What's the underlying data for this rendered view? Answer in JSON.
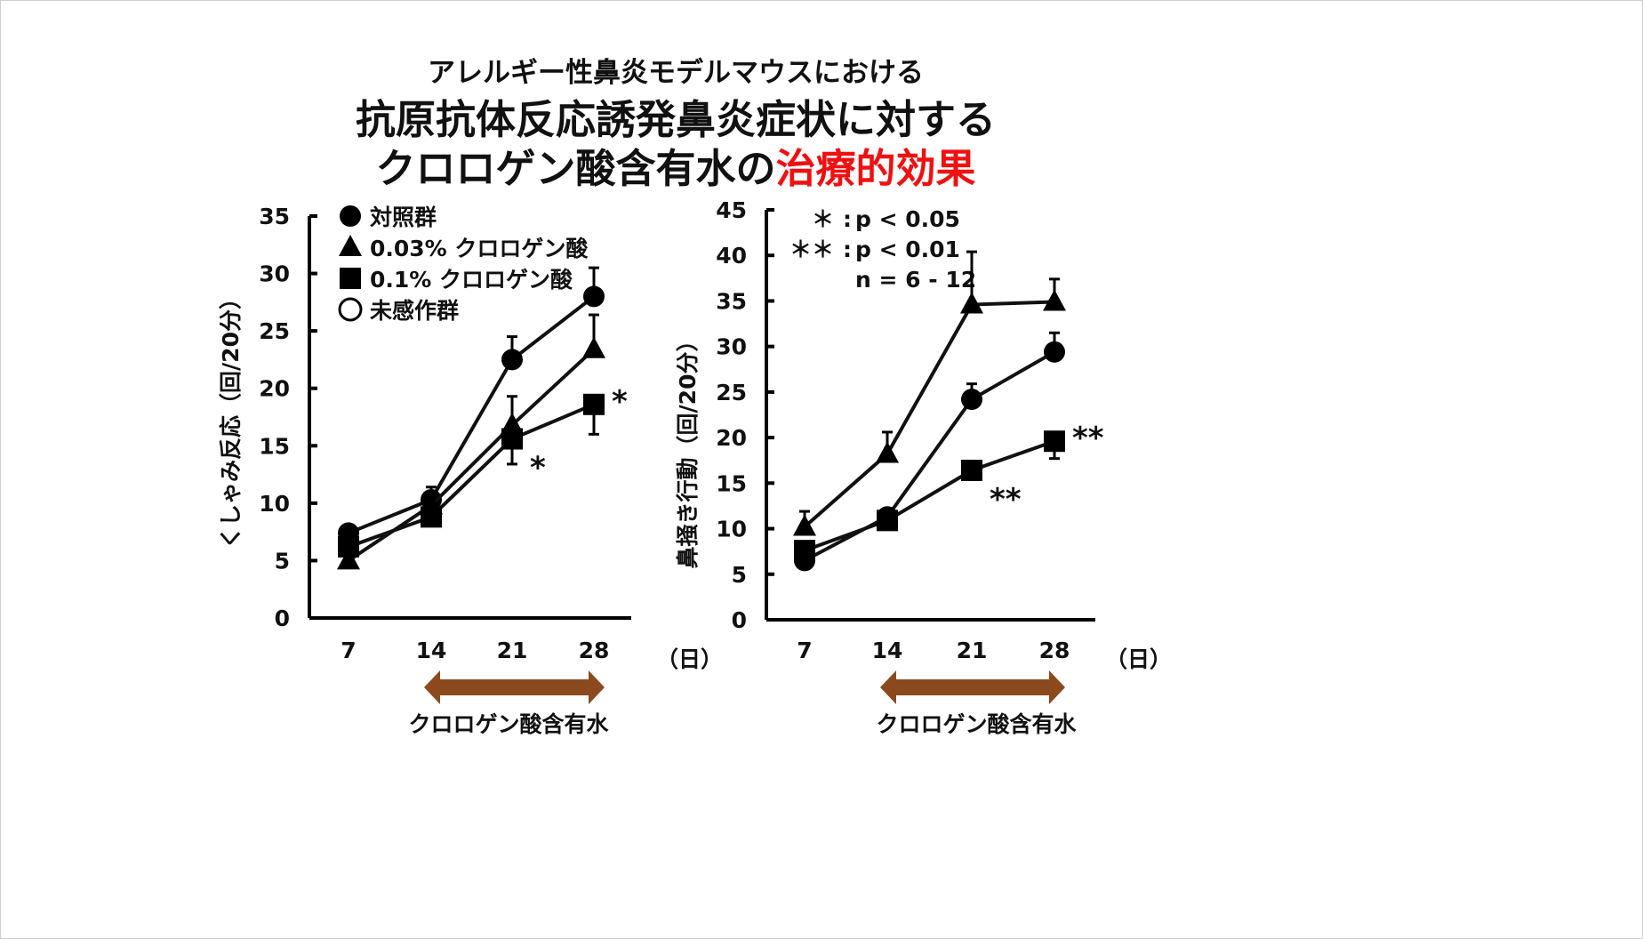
{
  "title": {
    "line1": "アレルギー性鼻炎モデルマウスにおける",
    "line2": "抗原抗体反応誘発鼻炎症状に対する",
    "line3_black": "クロロゲン酸含有水の",
    "line3_red": "治療的効果",
    "red_color": "#ee1111"
  },
  "legend": [
    {
      "marker": "filled-circle",
      "label": "対照群"
    },
    {
      "marker": "filled-triangle",
      "label": "0.03% クロロゲン酸"
    },
    {
      "marker": "filled-square",
      "label": "0.1% クロロゲン酸"
    },
    {
      "marker": "open-circle",
      "label": "未感作群"
    }
  ],
  "stats_note": [
    {
      "mark": "＊",
      "text": "p < 0.05"
    },
    {
      "mark": "＊＊",
      "text": "p < 0.01"
    },
    {
      "mark": "",
      "text": "n = 6 - 12"
    }
  ],
  "arrow_color": "#8b4a1e",
  "chart_data": [
    {
      "type": "line",
      "ylabel": "くしゃみ反応（回/20分）",
      "xlabel_unit": "（日）",
      "treatment_label": "クロロゲン酸含有水",
      "treatment_range": [
        14,
        28
      ],
      "x": [
        7,
        14,
        21,
        28
      ],
      "ylim": [
        0,
        35
      ],
      "yticks": [
        0,
        5,
        10,
        15,
        20,
        25,
        30,
        35
      ],
      "series": [
        {
          "name": "対照群",
          "marker": "circle",
          "values": [
            7.4,
            10.3,
            22.5,
            28.0
          ],
          "err": [
            0.4,
            1.1,
            2.0,
            2.5
          ],
          "err_dir": "up"
        },
        {
          "name": "0.03% クロロゲン酸",
          "marker": "triangle",
          "values": [
            5.0,
            9.8,
            16.8,
            23.4
          ],
          "err": [
            0,
            0.6,
            2.5,
            3.0
          ],
          "err_dir": "up"
        },
        {
          "name": "0.1% クロロゲン酸",
          "marker": "square",
          "values": [
            6.2,
            8.8,
            15.6,
            18.6
          ],
          "err": [
            0,
            0.6,
            2.2,
            2.6
          ],
          "err_dir": "down"
        }
      ],
      "significance": [
        {
          "series": "0.1% クロロゲン酸",
          "x": 21,
          "mark": "*"
        },
        {
          "series": "0.1% クロロゲン酸",
          "x": 28,
          "mark": "*"
        }
      ]
    },
    {
      "type": "line",
      "ylabel": "鼻掻き行動（回/20分）",
      "xlabel_unit": "（日）",
      "treatment_label": "クロロゲン酸含有水",
      "treatment_range": [
        14,
        28
      ],
      "x": [
        7,
        14,
        21,
        28
      ],
      "ylim": [
        0,
        45
      ],
      "yticks": [
        0,
        5,
        10,
        15,
        20,
        25,
        30,
        35,
        40,
        45
      ],
      "series": [
        {
          "name": "対照群",
          "marker": "circle",
          "values": [
            6.5,
            11.3,
            24.2,
            29.4
          ],
          "err": [
            0,
            0,
            1.7,
            2.1
          ],
          "err_dir": "up"
        },
        {
          "name": "0.03% クロロゲン酸",
          "marker": "triangle",
          "values": [
            10.2,
            18.2,
            34.6,
            34.9
          ],
          "err": [
            1.7,
            2.4,
            5.8,
            2.5
          ],
          "err_dir": "up"
        },
        {
          "name": "0.1% クロロゲン酸",
          "marker": "square",
          "values": [
            7.6,
            10.9,
            16.4,
            19.6
          ],
          "err": [
            0,
            0,
            0.8,
            1.9
          ],
          "err_dir": "down"
        }
      ],
      "significance": [
        {
          "series": "0.1% クロロゲン酸",
          "x": 21,
          "mark": "**"
        },
        {
          "series": "0.1% クロロゲン酸",
          "x": 28,
          "mark": "**"
        }
      ]
    }
  ]
}
